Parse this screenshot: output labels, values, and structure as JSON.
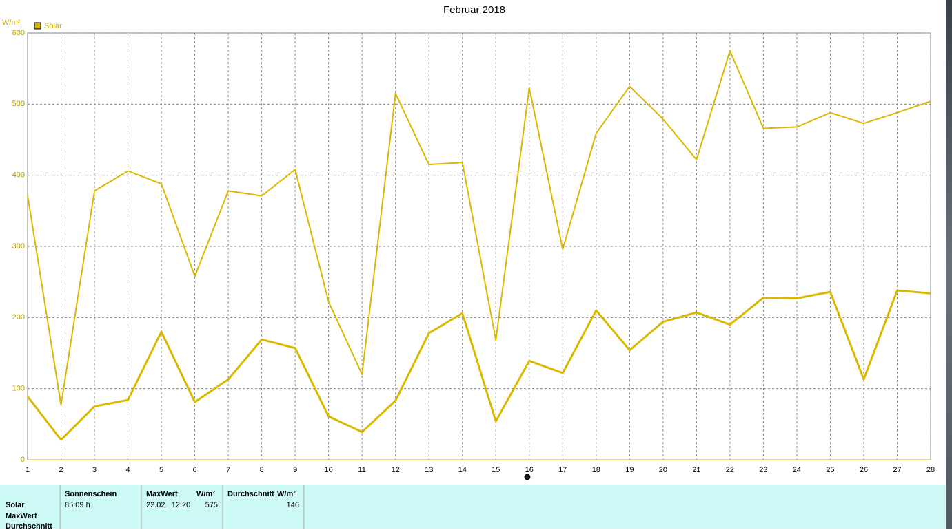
{
  "chart_data": {
    "type": "line",
    "title": "Februar 2018",
    "y_label": "W/m²",
    "x": [
      1,
      2,
      3,
      4,
      5,
      6,
      7,
      8,
      9,
      10,
      11,
      12,
      13,
      14,
      15,
      16,
      17,
      18,
      19,
      20,
      21,
      22,
      23,
      24,
      25,
      26,
      27,
      28
    ],
    "xlim": [
      1,
      28
    ],
    "xticks": [
      1,
      2,
      3,
      4,
      5,
      6,
      7,
      8,
      9,
      10,
      11,
      12,
      13,
      14,
      15,
      16,
      17,
      18,
      19,
      20,
      21,
      22,
      23,
      24,
      25,
      26,
      27,
      28
    ],
    "ylim": [
      0,
      600
    ],
    "yticks": [
      0,
      100,
      200,
      300,
      400,
      500,
      600
    ],
    "grid": true,
    "series": [
      {
        "name": "Solar",
        "color": "#d9b800",
        "values": [
          372,
          77,
          378,
          406,
          388,
          258,
          378,
          371,
          408,
          222,
          120,
          515,
          415,
          418,
          168,
          523,
          296,
          459,
          525,
          479,
          422,
          575,
          466,
          468,
          488,
          473,
          488,
          504
        ]
      },
      {
        "color": "#d9b800",
        "values": [
          89,
          28,
          75,
          84,
          180,
          81,
          113,
          169,
          157,
          61,
          39,
          83,
          178,
          206,
          54,
          139,
          122,
          210,
          154,
          194,
          207,
          190,
          228,
          227,
          236,
          113,
          238,
          234
        ]
      }
    ]
  },
  "stats": {
    "row_labels": [
      "Solar",
      "MaxWert",
      "Durchschnitt"
    ],
    "headers": [
      "Sonnenschein",
      "MaxWert",
      "W/m²",
      "Durchschnitt",
      "W/m²"
    ],
    "cells": [
      "85:09 h",
      "22.02.  12:20",
      575,
      146
    ]
  }
}
